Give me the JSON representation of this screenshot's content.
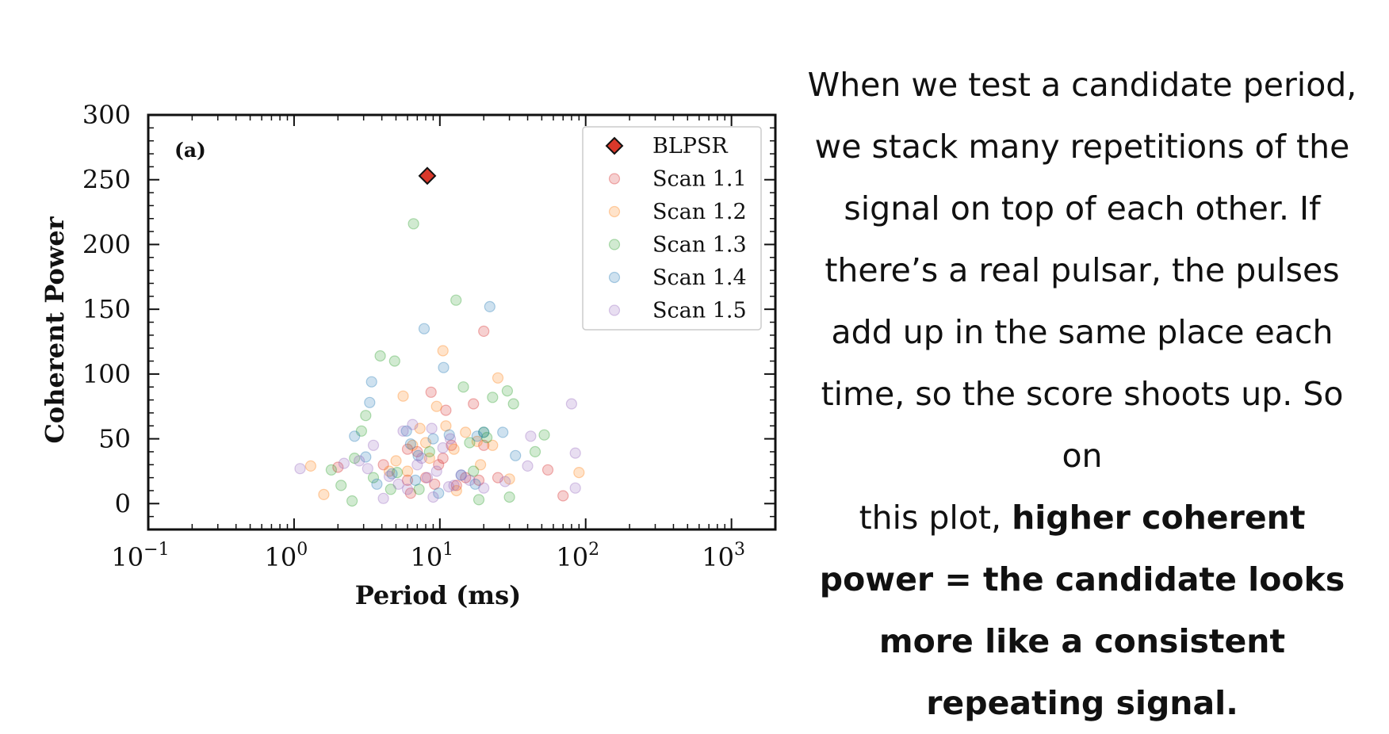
{
  "chart_data": {
    "type": "scatter",
    "panel_label": "(a)",
    "xlabel": "Period (ms)",
    "ylabel": "Coherent Power",
    "xscale": "log",
    "xlim": [
      0.1,
      2000
    ],
    "ylim": [
      -20,
      300
    ],
    "x_ticks": [
      {
        "value": 0.1,
        "base": "10",
        "exp": "−1"
      },
      {
        "value": 1,
        "base": "10",
        "exp": "0"
      },
      {
        "value": 10,
        "base": "10",
        "exp": "1"
      },
      {
        "value": 100,
        "base": "10",
        "exp": "2"
      },
      {
        "value": 1000,
        "base": "10",
        "exp": "3"
      }
    ],
    "y_ticks": [
      0,
      50,
      100,
      150,
      200,
      250,
      300
    ],
    "legend_position": "top-right",
    "highlight": {
      "name": "BLPSR",
      "marker": "diamond",
      "color": "#d9382a",
      "points": [
        [
          8.2,
          253
        ]
      ]
    },
    "series": [
      {
        "name": "Scan 1.1",
        "color": "#d62728",
        "points": [
          [
            2.0,
            28
          ],
          [
            4.1,
            30
          ],
          [
            6.0,
            18
          ],
          [
            6.3,
            8
          ],
          [
            7.0,
            40
          ],
          [
            8.0,
            20
          ],
          [
            8.7,
            86
          ],
          [
            9.2,
            15
          ],
          [
            9.8,
            30
          ],
          [
            11.0,
            72
          ],
          [
            12.0,
            45
          ],
          [
            13.0,
            14
          ],
          [
            15.0,
            20
          ],
          [
            17.0,
            77
          ],
          [
            18.5,
            18
          ],
          [
            20.0,
            133
          ],
          [
            20.0,
            45
          ],
          [
            25.0,
            20
          ],
          [
            55.0,
            26
          ],
          [
            70.0,
            6
          ],
          [
            6.0,
            42
          ],
          [
            10.5,
            35
          ]
        ]
      },
      {
        "name": "Scan 1.2",
        "color": "#ff7f0e",
        "points": [
          [
            1.3,
            29
          ],
          [
            1.6,
            7
          ],
          [
            4.5,
            25
          ],
          [
            5.0,
            33
          ],
          [
            5.6,
            83
          ],
          [
            6.0,
            25
          ],
          [
            6.5,
            45
          ],
          [
            7.3,
            58
          ],
          [
            8.0,
            47
          ],
          [
            9.5,
            75
          ],
          [
            10.5,
            118
          ],
          [
            11.0,
            60
          ],
          [
            13.0,
            10
          ],
          [
            15.0,
            55
          ],
          [
            18.0,
            48
          ],
          [
            19.0,
            30
          ],
          [
            23.0,
            45
          ],
          [
            25.0,
            97
          ],
          [
            30.0,
            19
          ],
          [
            90.0,
            24
          ],
          [
            12.5,
            42
          ],
          [
            8.5,
            35
          ]
        ]
      },
      {
        "name": "Scan 1.3",
        "color": "#2ca02c",
        "points": [
          [
            1.8,
            26
          ],
          [
            2.1,
            14
          ],
          [
            2.5,
            2
          ],
          [
            2.6,
            35
          ],
          [
            2.9,
            56
          ],
          [
            3.1,
            68
          ],
          [
            3.5,
            20
          ],
          [
            3.9,
            114
          ],
          [
            4.6,
            11
          ],
          [
            4.9,
            110
          ],
          [
            5.1,
            24
          ],
          [
            6.6,
            216
          ],
          [
            7.2,
            11
          ],
          [
            8.5,
            40
          ],
          [
            12.9,
            157
          ],
          [
            14.5,
            90
          ],
          [
            16.0,
            47
          ],
          [
            17.0,
            25
          ],
          [
            18.5,
            3
          ],
          [
            20.0,
            55
          ],
          [
            21.0,
            51
          ],
          [
            23.0,
            82
          ],
          [
            29.0,
            87
          ],
          [
            32.0,
            77
          ],
          [
            45.0,
            40
          ],
          [
            52.0,
            53
          ],
          [
            30.0,
            5
          ]
        ]
      },
      {
        "name": "Scan 1.4",
        "color": "#1f77b4",
        "points": [
          [
            2.6,
            52
          ],
          [
            3.1,
            36
          ],
          [
            3.3,
            78
          ],
          [
            3.4,
            94
          ],
          [
            3.7,
            15
          ],
          [
            4.7,
            23
          ],
          [
            5.9,
            56
          ],
          [
            6.3,
            46
          ],
          [
            7.1,
            37
          ],
          [
            7.8,
            135
          ],
          [
            9.0,
            50
          ],
          [
            9.8,
            8
          ],
          [
            10.6,
            105
          ],
          [
            11.6,
            53
          ],
          [
            14.0,
            22
          ],
          [
            18.0,
            52
          ],
          [
            20.0,
            55
          ],
          [
            22.0,
            152
          ],
          [
            27.0,
            55
          ],
          [
            33.0,
            37
          ],
          [
            17.5,
            15
          ],
          [
            6.8,
            18
          ]
        ]
      },
      {
        "name": "Scan 1.5",
        "color": "#9467bd",
        "points": [
          [
            1.1,
            27
          ],
          [
            2.2,
            31
          ],
          [
            2.8,
            33
          ],
          [
            3.2,
            27
          ],
          [
            3.5,
            45
          ],
          [
            4.1,
            4
          ],
          [
            4.5,
            21
          ],
          [
            5.2,
            15
          ],
          [
            5.6,
            56
          ],
          [
            6.0,
            11
          ],
          [
            6.5,
            61
          ],
          [
            7.0,
            30
          ],
          [
            7.5,
            35
          ],
          [
            8.2,
            20
          ],
          [
            8.8,
            58
          ],
          [
            9.5,
            25
          ],
          [
            10.5,
            43
          ],
          [
            11.5,
            13
          ],
          [
            12.5,
            14
          ],
          [
            14.0,
            22
          ],
          [
            16.0,
            18
          ],
          [
            20.0,
            12
          ],
          [
            28.0,
            17
          ],
          [
            40.0,
            29
          ],
          [
            42.0,
            52
          ],
          [
            80.0,
            77
          ],
          [
            85.0,
            12
          ],
          [
            85.0,
            39
          ],
          [
            11.8,
            50
          ],
          [
            9.0,
            5
          ]
        ]
      }
    ]
  },
  "explanation": {
    "line1": "When we test a candidate period,",
    "line2": "we stack many repetitions of the",
    "line3": "signal on top of each other. If",
    "line4": "there’s a real pulsar, the pulses",
    "line5": "add up in the same place each",
    "line6": "time, so the score shoots up. So on",
    "line7_plain": "this plot, ",
    "line7_bold": "higher coherent",
    "line8": "power = the candidate looks",
    "line9": "more like a consistent",
    "line10": "repeating signal."
  }
}
